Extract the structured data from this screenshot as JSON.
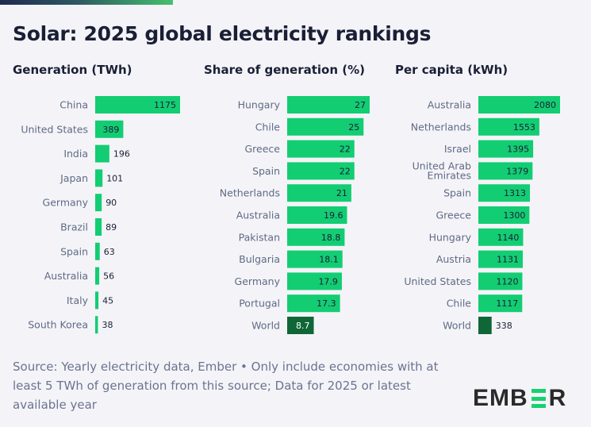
{
  "header": {
    "title": "Solar: 2025 global electricity rankings"
  },
  "colors": {
    "bar": "#13cd73",
    "world_bar": "#0f6636",
    "text_dark": "#1a1f36",
    "text_muted": "#5f6a85",
    "background": "#f4f4f8",
    "logo_accent": "#18d16f"
  },
  "chart_data": [
    {
      "type": "bar",
      "orientation": "horizontal",
      "title": "Generation (TWh)",
      "categories": [
        "China",
        "United States",
        "India",
        "Japan",
        "Germany",
        "Brazil",
        "Spain",
        "Australia",
        "Italy",
        "South Korea"
      ],
      "values": [
        1175,
        389,
        196,
        101,
        90,
        89,
        63,
        56,
        45,
        38
      ],
      "value_labels": [
        "1175",
        "389",
        "196",
        "101",
        "90",
        "89",
        "63",
        "56",
        "45",
        "38"
      ],
      "highlight": [],
      "xlim": [
        0,
        1175
      ],
      "grid": false
    },
    {
      "type": "bar",
      "orientation": "horizontal",
      "title": "Share of generation (%)",
      "categories": [
        "Hungary",
        "Chile",
        "Greece",
        "Spain",
        "Netherlands",
        "Australia",
        "Pakistan",
        "Bulgaria",
        "Germany",
        "Portugal",
        "World"
      ],
      "values": [
        27,
        25,
        22,
        22,
        21,
        19.6,
        18.8,
        18.1,
        17.9,
        17.3,
        8.7
      ],
      "value_labels": [
        "27",
        "25",
        "22",
        "22",
        "21",
        "19.6",
        "18.8",
        "18.1",
        "17.9",
        "17.3",
        "8.7"
      ],
      "highlight": [
        "World"
      ],
      "xlim": [
        0,
        27
      ],
      "grid": false
    },
    {
      "type": "bar",
      "orientation": "horizontal",
      "title": "Per capita (kWh)",
      "categories": [
        "Australia",
        "Netherlands",
        "Israel",
        "United Arab Emirates",
        "Spain",
        "Greece",
        "Hungary",
        "Austria",
        "United States",
        "Chile",
        "World"
      ],
      "values": [
        2080,
        1553,
        1395,
        1379,
        1313,
        1300,
        1140,
        1131,
        1120,
        1117,
        338
      ],
      "value_labels": [
        "2080",
        "1553",
        "1395",
        "1379",
        "1313",
        "1300",
        "1140",
        "1131",
        "1120",
        "1117",
        "338"
      ],
      "highlight": [
        "World"
      ],
      "xlim": [
        0,
        2080
      ],
      "grid": false
    }
  ],
  "footer": {
    "source": "Source: Yearly electricity data, Ember • Only include economies with at least 5 TWh of generation from this source; Data for 2025 or latest available year"
  },
  "logo": {
    "part1": "EMB",
    "part2": "R",
    "icon": "ember-e-bars-icon"
  }
}
